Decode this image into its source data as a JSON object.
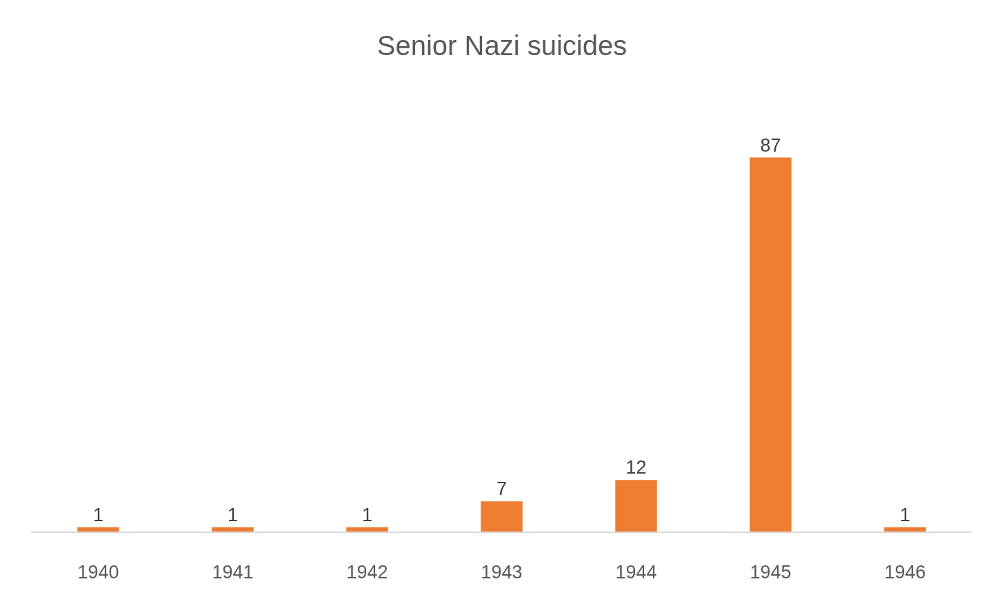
{
  "chart_data": {
    "type": "bar",
    "title": "Senior Nazi suicides",
    "categories": [
      "1940",
      "1941",
      "1942",
      "1943",
      "1944",
      "1945",
      "1946"
    ],
    "values": [
      1,
      1,
      1,
      7,
      12,
      87,
      1
    ],
    "color": "#ed7d31",
    "data_labels": true
  }
}
